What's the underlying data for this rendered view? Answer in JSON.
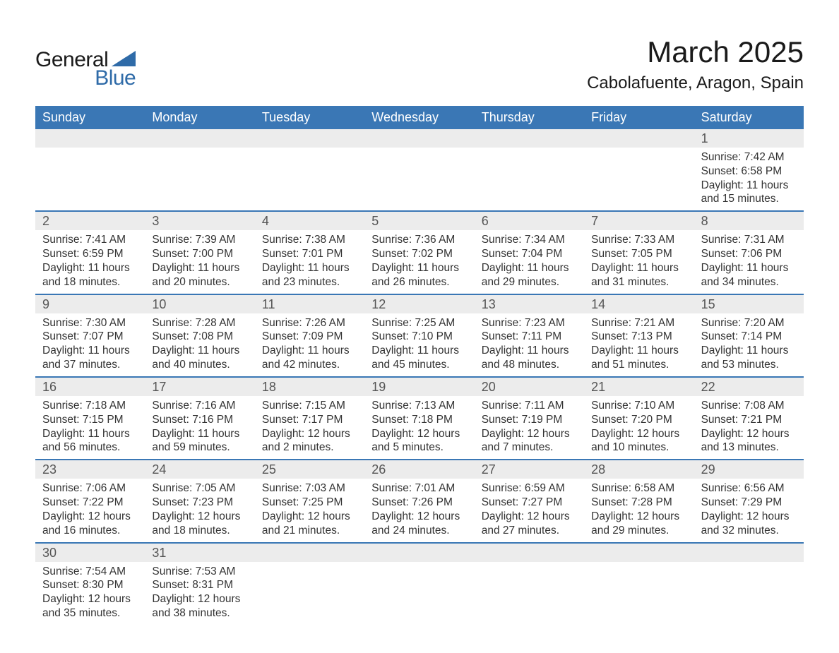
{
  "logo": {
    "text_general": "General",
    "text_blue": "Blue",
    "accent_color": "#2f6ba8"
  },
  "title": "March 2025",
  "location": "Cabolafuente, Aragon, Spain",
  "colors": {
    "header_bg": "#3a77b5",
    "header_text": "#ffffff",
    "daynum_bg": "#ececec",
    "daynum_text": "#555555",
    "body_text": "#333333",
    "row_divider": "#3a77b5",
    "page_bg": "#ffffff"
  },
  "fonts": {
    "title_size_pt": 32,
    "location_size_pt": 18,
    "dayheader_size_pt": 14,
    "daynum_size_pt": 14,
    "body_size_pt": 12
  },
  "day_headers": [
    "Sunday",
    "Monday",
    "Tuesday",
    "Wednesday",
    "Thursday",
    "Friday",
    "Saturday"
  ],
  "weeks": [
    [
      {
        "empty": true
      },
      {
        "empty": true
      },
      {
        "empty": true
      },
      {
        "empty": true
      },
      {
        "empty": true
      },
      {
        "empty": true
      },
      {
        "day": "1",
        "sunrise": "Sunrise: 7:42 AM",
        "sunset": "Sunset: 6:58 PM",
        "daylight": "Daylight: 11 hours and 15 minutes."
      }
    ],
    [
      {
        "day": "2",
        "sunrise": "Sunrise: 7:41 AM",
        "sunset": "Sunset: 6:59 PM",
        "daylight": "Daylight: 11 hours and 18 minutes."
      },
      {
        "day": "3",
        "sunrise": "Sunrise: 7:39 AM",
        "sunset": "Sunset: 7:00 PM",
        "daylight": "Daylight: 11 hours and 20 minutes."
      },
      {
        "day": "4",
        "sunrise": "Sunrise: 7:38 AM",
        "sunset": "Sunset: 7:01 PM",
        "daylight": "Daylight: 11 hours and 23 minutes."
      },
      {
        "day": "5",
        "sunrise": "Sunrise: 7:36 AM",
        "sunset": "Sunset: 7:02 PM",
        "daylight": "Daylight: 11 hours and 26 minutes."
      },
      {
        "day": "6",
        "sunrise": "Sunrise: 7:34 AM",
        "sunset": "Sunset: 7:04 PM",
        "daylight": "Daylight: 11 hours and 29 minutes."
      },
      {
        "day": "7",
        "sunrise": "Sunrise: 7:33 AM",
        "sunset": "Sunset: 7:05 PM",
        "daylight": "Daylight: 11 hours and 31 minutes."
      },
      {
        "day": "8",
        "sunrise": "Sunrise: 7:31 AM",
        "sunset": "Sunset: 7:06 PM",
        "daylight": "Daylight: 11 hours and 34 minutes."
      }
    ],
    [
      {
        "day": "9",
        "sunrise": "Sunrise: 7:30 AM",
        "sunset": "Sunset: 7:07 PM",
        "daylight": "Daylight: 11 hours and 37 minutes."
      },
      {
        "day": "10",
        "sunrise": "Sunrise: 7:28 AM",
        "sunset": "Sunset: 7:08 PM",
        "daylight": "Daylight: 11 hours and 40 minutes."
      },
      {
        "day": "11",
        "sunrise": "Sunrise: 7:26 AM",
        "sunset": "Sunset: 7:09 PM",
        "daylight": "Daylight: 11 hours and 42 minutes."
      },
      {
        "day": "12",
        "sunrise": "Sunrise: 7:25 AM",
        "sunset": "Sunset: 7:10 PM",
        "daylight": "Daylight: 11 hours and 45 minutes."
      },
      {
        "day": "13",
        "sunrise": "Sunrise: 7:23 AM",
        "sunset": "Sunset: 7:11 PM",
        "daylight": "Daylight: 11 hours and 48 minutes."
      },
      {
        "day": "14",
        "sunrise": "Sunrise: 7:21 AM",
        "sunset": "Sunset: 7:13 PM",
        "daylight": "Daylight: 11 hours and 51 minutes."
      },
      {
        "day": "15",
        "sunrise": "Sunrise: 7:20 AM",
        "sunset": "Sunset: 7:14 PM",
        "daylight": "Daylight: 11 hours and 53 minutes."
      }
    ],
    [
      {
        "day": "16",
        "sunrise": "Sunrise: 7:18 AM",
        "sunset": "Sunset: 7:15 PM",
        "daylight": "Daylight: 11 hours and 56 minutes."
      },
      {
        "day": "17",
        "sunrise": "Sunrise: 7:16 AM",
        "sunset": "Sunset: 7:16 PM",
        "daylight": "Daylight: 11 hours and 59 minutes."
      },
      {
        "day": "18",
        "sunrise": "Sunrise: 7:15 AM",
        "sunset": "Sunset: 7:17 PM",
        "daylight": "Daylight: 12 hours and 2 minutes."
      },
      {
        "day": "19",
        "sunrise": "Sunrise: 7:13 AM",
        "sunset": "Sunset: 7:18 PM",
        "daylight": "Daylight: 12 hours and 5 minutes."
      },
      {
        "day": "20",
        "sunrise": "Sunrise: 7:11 AM",
        "sunset": "Sunset: 7:19 PM",
        "daylight": "Daylight: 12 hours and 7 minutes."
      },
      {
        "day": "21",
        "sunrise": "Sunrise: 7:10 AM",
        "sunset": "Sunset: 7:20 PM",
        "daylight": "Daylight: 12 hours and 10 minutes."
      },
      {
        "day": "22",
        "sunrise": "Sunrise: 7:08 AM",
        "sunset": "Sunset: 7:21 PM",
        "daylight": "Daylight: 12 hours and 13 minutes."
      }
    ],
    [
      {
        "day": "23",
        "sunrise": "Sunrise: 7:06 AM",
        "sunset": "Sunset: 7:22 PM",
        "daylight": "Daylight: 12 hours and 16 minutes."
      },
      {
        "day": "24",
        "sunrise": "Sunrise: 7:05 AM",
        "sunset": "Sunset: 7:23 PM",
        "daylight": "Daylight: 12 hours and 18 minutes."
      },
      {
        "day": "25",
        "sunrise": "Sunrise: 7:03 AM",
        "sunset": "Sunset: 7:25 PM",
        "daylight": "Daylight: 12 hours and 21 minutes."
      },
      {
        "day": "26",
        "sunrise": "Sunrise: 7:01 AM",
        "sunset": "Sunset: 7:26 PM",
        "daylight": "Daylight: 12 hours and 24 minutes."
      },
      {
        "day": "27",
        "sunrise": "Sunrise: 6:59 AM",
        "sunset": "Sunset: 7:27 PM",
        "daylight": "Daylight: 12 hours and 27 minutes."
      },
      {
        "day": "28",
        "sunrise": "Sunrise: 6:58 AM",
        "sunset": "Sunset: 7:28 PM",
        "daylight": "Daylight: 12 hours and 29 minutes."
      },
      {
        "day": "29",
        "sunrise": "Sunrise: 6:56 AM",
        "sunset": "Sunset: 7:29 PM",
        "daylight": "Daylight: 12 hours and 32 minutes."
      }
    ],
    [
      {
        "day": "30",
        "sunrise": "Sunrise: 7:54 AM",
        "sunset": "Sunset: 8:30 PM",
        "daylight": "Daylight: 12 hours and 35 minutes."
      },
      {
        "day": "31",
        "sunrise": "Sunrise: 7:53 AM",
        "sunset": "Sunset: 8:31 PM",
        "daylight": "Daylight: 12 hours and 38 minutes."
      },
      {
        "empty": true
      },
      {
        "empty": true
      },
      {
        "empty": true
      },
      {
        "empty": true
      },
      {
        "empty": true
      }
    ]
  ]
}
